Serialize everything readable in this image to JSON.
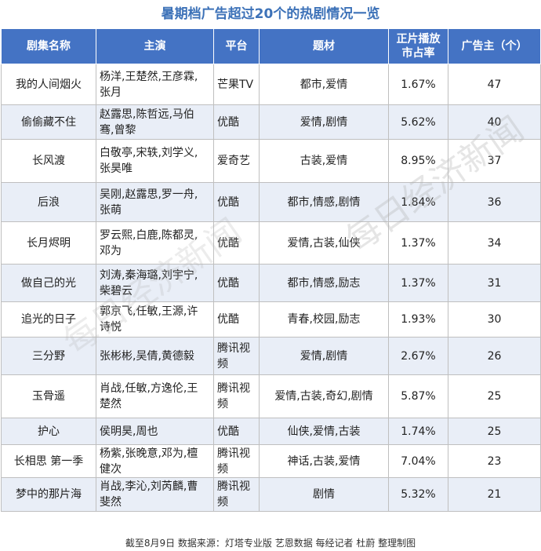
{
  "title": "暑期档广告超过20个的热剧情况一览",
  "headers": [
    "剧集名称",
    "主演",
    "平台",
    "题材",
    "正片播放\n市占率",
    "广告主（个）"
  ],
  "rows": [
    {
      "name": "我的人间烟火",
      "cast": "杨洋,王楚然,王彦霖,\n张月",
      "platform": "芒果TV",
      "genre": "都市,爱情",
      "share": "1.67%",
      "advertisers": "47"
    },
    {
      "name": "偷偷藏不住",
      "cast": "赵露思,陈哲远,马伯\n骞,曾黎",
      "platform": "优酷",
      "genre": "爱情,剧情",
      "share": "5.62%",
      "advertisers": "40"
    },
    {
      "name": "长风渡",
      "cast": "白敬亭,宋轶,刘学义,\n张昊唯",
      "platform": "爱奇艺",
      "genre": "古装,爱情",
      "share": "8.95%",
      "advertisers": "37"
    },
    {
      "name": "后浪",
      "cast": "吴刚,赵露思,罗一舟,\n张萌",
      "platform": "优酷",
      "genre": "都市,情感,剧情",
      "share": "1.84%",
      "advertisers": "36"
    },
    {
      "name": "长月烬明",
      "cast": "罗云熙,白鹿,陈都灵,\n邓为",
      "platform": "优酷",
      "genre": "爱情,古装,仙侠",
      "share": "1.37%",
      "advertisers": "34"
    },
    {
      "name": "做自己的光",
      "cast": "刘涛,秦海璐,刘宇宁,\n柴碧云",
      "platform": "优酷",
      "genre": "都市,情感,励志",
      "share": "1.37%",
      "advertisers": "31"
    },
    {
      "name": "追光的日子",
      "cast": "郭京飞,任敏,王源,许\n诗悦",
      "platform": "优酷",
      "genre": "青春,校园,励志",
      "share": "1.93%",
      "advertisers": "30"
    },
    {
      "name": "三分野",
      "cast": "张彬彬,吴倩,黄德毅",
      "platform": "腾讯视\n频",
      "genre": "爱情,剧情",
      "share": "2.67%",
      "advertisers": "26"
    },
    {
      "name": "玉骨遥",
      "cast": "肖战,任敏,方逸伦,王\n楚然",
      "platform": "腾讯视\n频",
      "genre": "爱情,古装,奇幻,剧情",
      "share": "5.87%",
      "advertisers": "25"
    },
    {
      "name": "护心",
      "cast": "侯明昊,周也",
      "platform": "优酷",
      "genre": "仙侠,爱情,古装",
      "share": "1.74%",
      "advertisers": "25"
    },
    {
      "name": "长相思 第一季",
      "cast": "杨紫,张晚意,邓为,檀\n健次",
      "platform": "腾讯视\n频",
      "genre": "神话,古装,爱情",
      "share": "7.04%",
      "advertisers": "23"
    },
    {
      "name": "梦中的那片海",
      "cast": "肖战,李沁,刘芮麟,曹\n斐然",
      "platform": "腾讯视\n频",
      "genre": "剧情",
      "share": "5.32%",
      "advertisers": "21"
    }
  ],
  "footer": "截至8月9日  数据来源：灯塔专业版 艺恩数据  每经记者 杜蔚 整理制图",
  "watermark": "每日经济新闻",
  "colors": {
    "header_bg": "#4473c4",
    "title": "#3d72b8",
    "stripe": "#e9eef7"
  }
}
